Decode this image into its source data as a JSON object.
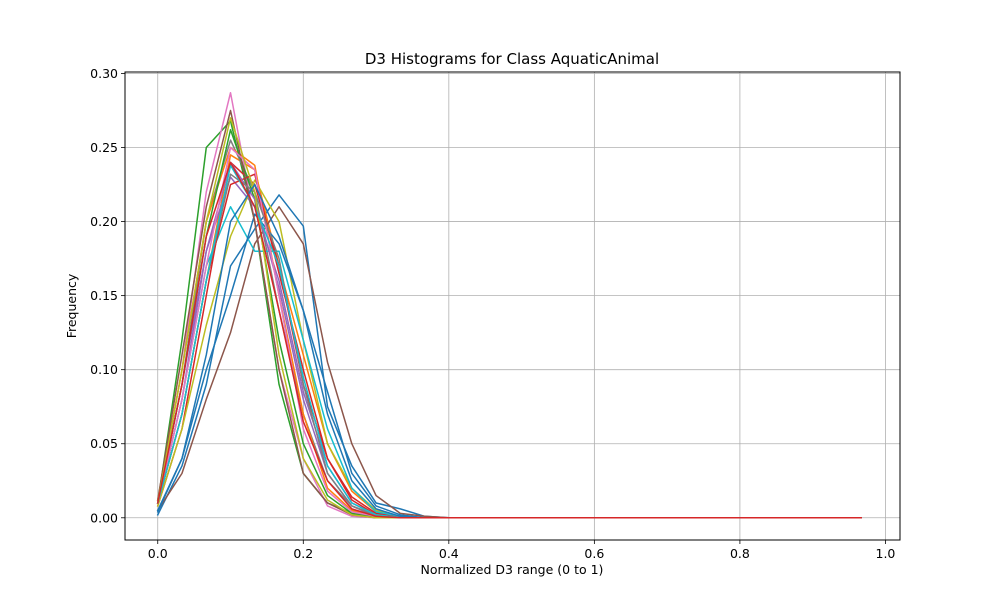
{
  "chart_data": {
    "type": "line",
    "title": "D3 Histograms for Class AquaticAnimal",
    "xlabel": "Normalized D3 range (0 to 1)",
    "ylabel": "Frequency",
    "xlim": [
      -0.045,
      1.02
    ],
    "ylim": [
      -0.015,
      0.301
    ],
    "xticks": [
      0.0,
      0.2,
      0.4,
      0.6,
      0.8,
      1.0
    ],
    "xtick_labels": [
      "0.0",
      "0.2",
      "0.4",
      "0.6",
      "0.8",
      "1.0"
    ],
    "yticks": [
      0.0,
      0.05,
      0.1,
      0.15,
      0.2,
      0.25,
      0.3
    ],
    "ytick_labels": [
      "0.00",
      "0.05",
      "0.10",
      "0.15",
      "0.20",
      "0.25",
      "0.30"
    ],
    "grid": true,
    "legend": "none",
    "x": [
      0.0,
      0.0333,
      0.0667,
      0.1,
      0.1333,
      0.1667,
      0.2,
      0.2333,
      0.2667,
      0.3,
      0.3333,
      0.3667,
      0.4,
      0.4333,
      0.4667,
      0.5,
      0.5333,
      0.5667,
      0.6,
      0.6333,
      0.6667,
      0.7,
      0.7333,
      0.7667,
      0.8,
      0.8333,
      0.8667,
      0.9,
      0.9333,
      0.9667
    ],
    "series": [
      {
        "color": "#1f77b4",
        "values": [
          0.002,
          0.035,
          0.09,
          0.17,
          0.195,
          0.218,
          0.197,
          0.075,
          0.035,
          0.01,
          0.006,
          0.001,
          0.0,
          0.0,
          0.0,
          0.0,
          0.0,
          0.0,
          0.0,
          0.0,
          0.0,
          0.0,
          0.0,
          0.0,
          0.0,
          0.0,
          0.0,
          0.0,
          0.0,
          0.0
        ]
      },
      {
        "color": "#ff7f0e",
        "values": [
          0.01,
          0.07,
          0.16,
          0.245,
          0.235,
          0.17,
          0.11,
          0.05,
          0.018,
          0.004,
          0.001,
          0.0,
          0.0,
          0.0,
          0.0,
          0.0,
          0.0,
          0.0,
          0.0,
          0.0,
          0.0,
          0.0,
          0.0,
          0.0,
          0.0,
          0.0,
          0.0,
          0.0,
          0.0,
          0.0
        ]
      },
      {
        "color": "#2ca02c",
        "values": [
          0.01,
          0.12,
          0.25,
          0.268,
          0.2,
          0.09,
          0.03,
          0.01,
          0.003,
          0.001,
          0.0,
          0.0,
          0.0,
          0.0,
          0.0,
          0.0,
          0.0,
          0.0,
          0.0,
          0.0,
          0.0,
          0.0,
          0.0,
          0.0,
          0.0,
          0.0,
          0.0,
          0.0,
          0.0,
          0.0
        ]
      },
      {
        "color": "#d62728",
        "values": [
          0.008,
          0.06,
          0.15,
          0.24,
          0.225,
          0.17,
          0.09,
          0.04,
          0.014,
          0.003,
          0.001,
          0.0,
          0.0,
          0.0,
          0.0,
          0.0,
          0.0,
          0.0,
          0.0,
          0.0,
          0.0,
          0.0,
          0.0,
          0.0,
          0.0,
          0.0,
          0.0,
          0.0,
          0.0,
          0.0
        ]
      },
      {
        "color": "#9467bd",
        "values": [
          0.012,
          0.09,
          0.18,
          0.23,
          0.21,
          0.16,
          0.085,
          0.035,
          0.01,
          0.002,
          0.0,
          0.0,
          0.0,
          0.0,
          0.0,
          0.0,
          0.0,
          0.0,
          0.0,
          0.0,
          0.0,
          0.0,
          0.0,
          0.0,
          0.0,
          0.0,
          0.0,
          0.0,
          0.0,
          0.0
        ]
      },
      {
        "color": "#8c564b",
        "values": [
          0.005,
          0.03,
          0.08,
          0.125,
          0.185,
          0.21,
          0.185,
          0.105,
          0.05,
          0.015,
          0.003,
          0.001,
          0.0,
          0.0,
          0.0,
          0.0,
          0.0,
          0.0,
          0.0,
          0.0,
          0.0,
          0.0,
          0.0,
          0.0,
          0.0,
          0.0,
          0.0,
          0.0,
          0.0,
          0.0
        ]
      },
      {
        "color": "#e377c2",
        "values": [
          0.01,
          0.1,
          0.22,
          0.287,
          0.2,
          0.1,
          0.04,
          0.008,
          0.001,
          0.0,
          0.0,
          0.0,
          0.0,
          0.0,
          0.0,
          0.0,
          0.0,
          0.0,
          0.0,
          0.0,
          0.0,
          0.0,
          0.0,
          0.0,
          0.0,
          0.0,
          0.0,
          0.0,
          0.0,
          0.0
        ]
      },
      {
        "color": "#7f7f7f",
        "values": [
          0.01,
          0.09,
          0.2,
          0.255,
          0.22,
          0.14,
          0.07,
          0.025,
          0.008,
          0.002,
          0.0,
          0.0,
          0.0,
          0.0,
          0.0,
          0.0,
          0.0,
          0.0,
          0.0,
          0.0,
          0.0,
          0.0,
          0.0,
          0.0,
          0.0,
          0.0,
          0.0,
          0.0,
          0.0,
          0.0
        ]
      },
      {
        "color": "#bcbd22",
        "values": [
          0.008,
          0.06,
          0.13,
          0.19,
          0.228,
          0.2,
          0.12,
          0.05,
          0.02,
          0.005,
          0.001,
          0.0,
          0.0,
          0.0,
          0.0,
          0.0,
          0.0,
          0.0,
          0.0,
          0.0,
          0.0,
          0.0,
          0.0,
          0.0,
          0.0,
          0.0,
          0.0,
          0.0,
          0.0,
          0.0
        ]
      },
      {
        "color": "#17becf",
        "values": [
          0.01,
          0.08,
          0.17,
          0.21,
          0.18,
          0.18,
          0.12,
          0.06,
          0.02,
          0.004,
          0.001,
          0.0,
          0.0,
          0.0,
          0.0,
          0.0,
          0.0,
          0.0,
          0.0,
          0.0,
          0.0,
          0.0,
          0.0,
          0.0,
          0.0,
          0.0,
          0.0,
          0.0,
          0.0,
          0.0
        ]
      },
      {
        "color": "#1f77b4",
        "values": [
          0.005,
          0.04,
          0.1,
          0.15,
          0.205,
          0.185,
          0.14,
          0.085,
          0.03,
          0.008,
          0.002,
          0.0,
          0.0,
          0.0,
          0.0,
          0.0,
          0.0,
          0.0,
          0.0,
          0.0,
          0.0,
          0.0,
          0.0,
          0.0,
          0.0,
          0.0,
          0.0,
          0.0,
          0.0,
          0.0
        ]
      },
      {
        "color": "#ff7f0e",
        "values": [
          0.012,
          0.1,
          0.2,
          0.25,
          0.238,
          0.15,
          0.07,
          0.02,
          0.005,
          0.001,
          0.0,
          0.0,
          0.0,
          0.0,
          0.0,
          0.0,
          0.0,
          0.0,
          0.0,
          0.0,
          0.0,
          0.0,
          0.0,
          0.0,
          0.0,
          0.0,
          0.0,
          0.0,
          0.0,
          0.0
        ]
      },
      {
        "color": "#2ca02c",
        "values": [
          0.01,
          0.09,
          0.19,
          0.262,
          0.215,
          0.12,
          0.05,
          0.015,
          0.003,
          0.0,
          0.0,
          0.0,
          0.0,
          0.0,
          0.0,
          0.0,
          0.0,
          0.0,
          0.0,
          0.0,
          0.0,
          0.0,
          0.0,
          0.0,
          0.0,
          0.0,
          0.0,
          0.0,
          0.0,
          0.0
        ]
      },
      {
        "color": "#d62728",
        "values": [
          0.01,
          0.07,
          0.16,
          0.225,
          0.232,
          0.165,
          0.1,
          0.04,
          0.012,
          0.002,
          0.0,
          0.0,
          0.0,
          0.0,
          0.0,
          0.0,
          0.0,
          0.0,
          0.0,
          0.0,
          0.0,
          0.0,
          0.0,
          0.0,
          0.0,
          0.0,
          0.0,
          0.0,
          0.0,
          0.0
        ]
      },
      {
        "color": "#9467bd",
        "values": [
          0.01,
          0.08,
          0.18,
          0.24,
          0.215,
          0.155,
          0.08,
          0.03,
          0.008,
          0.001,
          0.0,
          0.0,
          0.0,
          0.0,
          0.0,
          0.0,
          0.0,
          0.0,
          0.0,
          0.0,
          0.0,
          0.0,
          0.0,
          0.0,
          0.0,
          0.0,
          0.0,
          0.0,
          0.0,
          0.0
        ]
      },
      {
        "color": "#8c564b",
        "values": [
          0.012,
          0.11,
          0.21,
          0.275,
          0.2,
          0.1,
          0.03,
          0.01,
          0.002,
          0.0,
          0.0,
          0.0,
          0.0,
          0.0,
          0.0,
          0.0,
          0.0,
          0.0,
          0.0,
          0.0,
          0.0,
          0.0,
          0.0,
          0.0,
          0.0,
          0.0,
          0.0,
          0.0,
          0.0,
          0.0
        ]
      },
      {
        "color": "#e377c2",
        "values": [
          0.01,
          0.08,
          0.17,
          0.25,
          0.235,
          0.15,
          0.06,
          0.018,
          0.004,
          0.001,
          0.0,
          0.0,
          0.0,
          0.0,
          0.0,
          0.0,
          0.0,
          0.0,
          0.0,
          0.0,
          0.0,
          0.0,
          0.0,
          0.0,
          0.0,
          0.0,
          0.0,
          0.0,
          0.0,
          0.0
        ]
      },
      {
        "color": "#7f7f7f",
        "values": [
          0.01,
          0.07,
          0.16,
          0.232,
          0.22,
          0.175,
          0.09,
          0.03,
          0.008,
          0.001,
          0.0,
          0.0,
          0.0,
          0.0,
          0.0,
          0.0,
          0.0,
          0.0,
          0.0,
          0.0,
          0.0,
          0.0,
          0.0,
          0.0,
          0.0,
          0.0,
          0.0,
          0.0,
          0.0,
          0.0
        ]
      },
      {
        "color": "#bcbd22",
        "values": [
          0.01,
          0.1,
          0.2,
          0.27,
          0.22,
          0.11,
          0.04,
          0.012,
          0.002,
          0.0,
          0.0,
          0.0,
          0.0,
          0.0,
          0.0,
          0.0,
          0.0,
          0.0,
          0.0,
          0.0,
          0.0,
          0.0,
          0.0,
          0.0,
          0.0,
          0.0,
          0.0,
          0.0,
          0.0,
          0.0
        ]
      },
      {
        "color": "#17becf",
        "values": [
          0.01,
          0.07,
          0.16,
          0.238,
          0.21,
          0.17,
          0.095,
          0.035,
          0.01,
          0.002,
          0.0,
          0.0,
          0.0,
          0.0,
          0.0,
          0.0,
          0.0,
          0.0,
          0.0,
          0.0,
          0.0,
          0.0,
          0.0,
          0.0,
          0.0,
          0.0,
          0.0,
          0.0,
          0.0,
          0.0
        ]
      },
      {
        "color": "#1f77b4",
        "values": [
          0.004,
          0.04,
          0.11,
          0.2,
          0.225,
          0.19,
          0.14,
          0.07,
          0.025,
          0.006,
          0.001,
          0.0,
          0.0,
          0.0,
          0.0,
          0.0,
          0.0,
          0.0,
          0.0,
          0.0,
          0.0,
          0.0,
          0.0,
          0.0,
          0.0,
          0.0,
          0.0,
          0.0,
          0.0,
          0.0
        ]
      },
      {
        "color": "#d62728",
        "values": [
          0.01,
          0.09,
          0.19,
          0.24,
          0.21,
          0.14,
          0.065,
          0.025,
          0.006,
          0.001,
          0.0,
          0.0,
          0.0,
          0.0,
          0.0,
          0.0,
          0.0,
          0.0,
          0.0,
          0.0,
          0.0,
          0.0,
          0.0,
          0.0,
          0.0,
          0.0,
          0.0,
          0.0,
          0.0,
          0.0
        ]
      }
    ]
  }
}
